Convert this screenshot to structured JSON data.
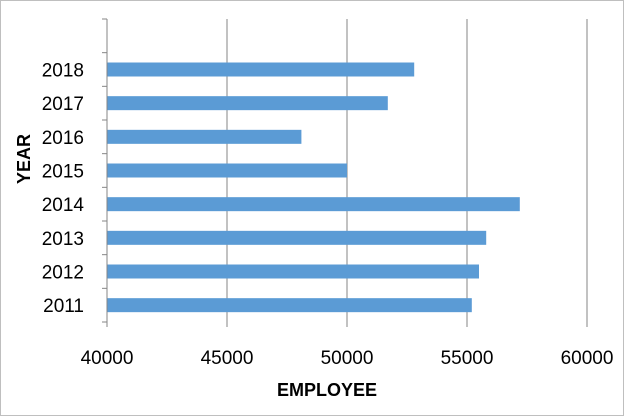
{
  "chart_data": {
    "type": "bar",
    "orientation": "horizontal",
    "title": "",
    "xlabel": "EMPLOYEE",
    "ylabel": "YEAR",
    "categories": [
      "2011",
      "2012",
      "2013",
      "2014",
      "2015",
      "2016",
      "2017",
      "2018"
    ],
    "values": [
      55200,
      55500,
      55800,
      57200,
      50000,
      48100,
      51700,
      52800
    ],
    "xlim": [
      40000,
      60000
    ],
    "xticks": [
      "40000",
      "45000",
      "50000",
      "55000",
      "60000"
    ],
    "grid": "vertical",
    "legend": "none",
    "bar_color": "#5b9bd5",
    "grid_color": "#868686"
  }
}
